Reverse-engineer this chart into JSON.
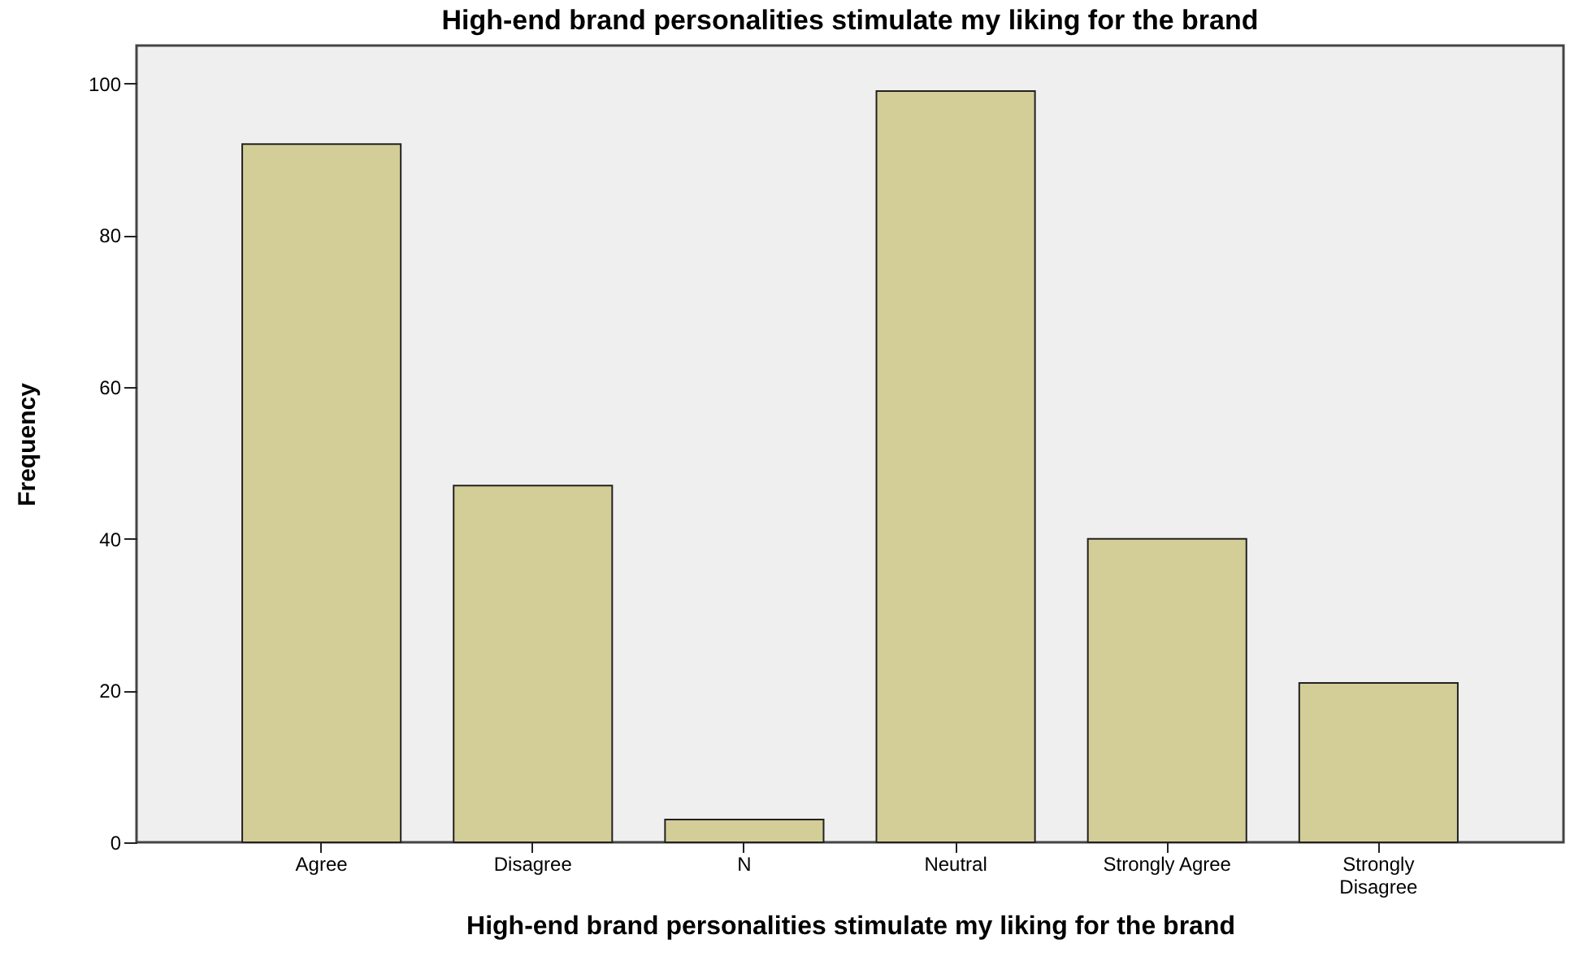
{
  "chart_data": {
    "type": "bar",
    "title": "High-end brand personalities stimulate my liking for the brand",
    "xlabel": "High-end brand personalities stimulate my liking for the brand",
    "ylabel": "Frequency",
    "categories": [
      "Agree",
      "Disagree",
      "N",
      "Neutral",
      "Strongly Agree",
      "Strongly Disagree"
    ],
    "values": [
      92,
      47,
      3,
      99,
      40,
      21
    ],
    "color": "#d3cd97",
    "ylim": [
      0,
      105
    ],
    "yticks": [
      0,
      20,
      40,
      60,
      80,
      100
    ],
    "grid": false
  }
}
